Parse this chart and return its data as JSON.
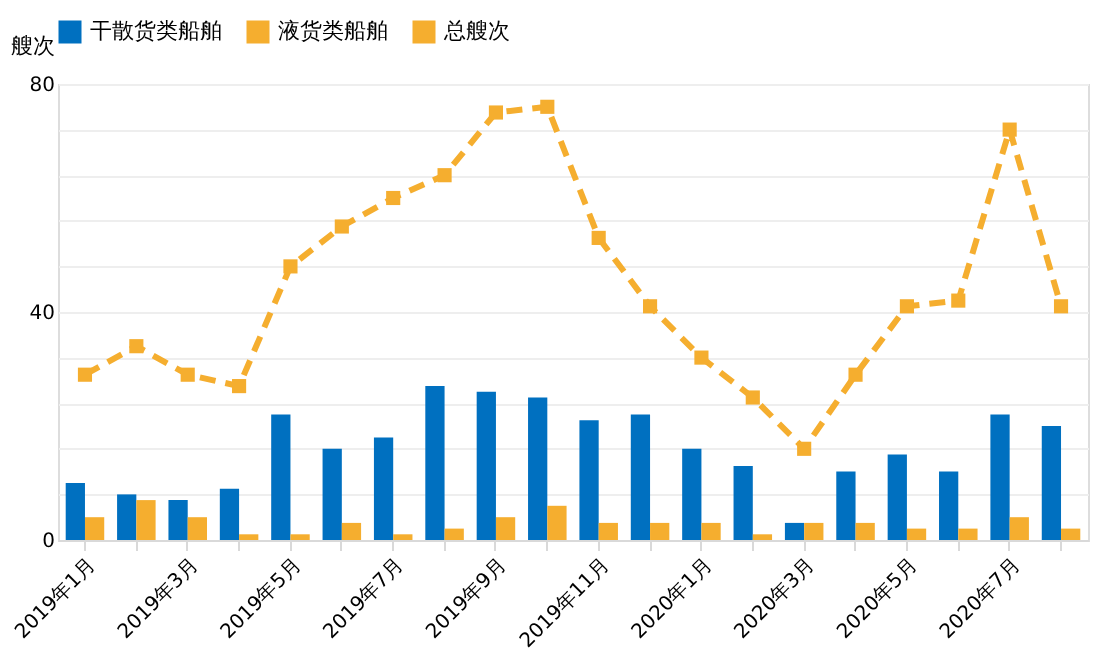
{
  "chart_data": {
    "type": "bar",
    "ylabel": "艘次",
    "categories": [
      "2019年1月",
      null,
      "2019年3月",
      null,
      "2019年5月",
      null,
      "2019年7月",
      null,
      "2019年9月",
      null,
      "2019年11月",
      null,
      "2020年1月",
      null,
      "2020年3月",
      null,
      "2020年5月",
      null,
      "2020年7月",
      null
    ],
    "series": [
      {
        "name": "干散货类船舶",
        "color": "#0070c0",
        "values": [
          10,
          8,
          7,
          9,
          22,
          16,
          18,
          27,
          26,
          25,
          21,
          22,
          16,
          13,
          3,
          12,
          15,
          12,
          22,
          20
        ]
      },
      {
        "name": "液货类船舶",
        "color": "#f5ae2f",
        "values": [
          4,
          7,
          4,
          1,
          1,
          3,
          1,
          2,
          4,
          6,
          3,
          3,
          3,
          1,
          3,
          3,
          2,
          2,
          4,
          2
        ]
      },
      {
        "name": "总艘次",
        "type": "line",
        "color": "#f5ae2f",
        "marker": "square",
        "line_style": "dashed",
        "values": [
          29,
          34,
          29,
          27,
          48,
          55,
          60,
          64,
          75,
          76,
          53,
          41,
          32,
          25,
          16,
          29,
          41,
          42,
          72,
          41
        ]
      }
    ],
    "ylim": [
      0,
      80
    ],
    "yticks": [
      0,
      {
        "value": 8,
        "label": null
      },
      {
        "value": 16,
        "label": null
      },
      {
        "value": 24,
        "label": null
      },
      {
        "value": 32,
        "label": null
      },
      40,
      {
        "value": 48,
        "label": null
      },
      {
        "value": 56,
        "label": null
      },
      {
        "value": 64,
        "label": null
      },
      {
        "value": 72,
        "label": null
      },
      80
    ],
    "grid": "y",
    "legend": "top"
  }
}
